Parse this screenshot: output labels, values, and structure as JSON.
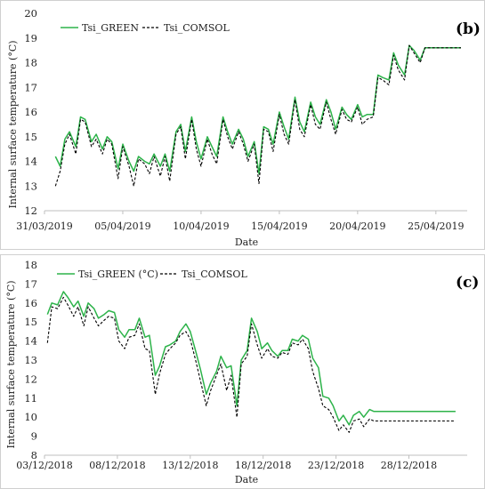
{
  "colors": {
    "green": "#2db34a",
    "comsol": "#000000",
    "axis": "#bfbfbf"
  },
  "chart_data": [
    {
      "type": "line",
      "panel_label": "(b)",
      "xlabel": "Date",
      "ylabel": "Internal surface temperature (°C)",
      "ylim": [
        12,
        20
      ],
      "yticks": [
        "12",
        "13",
        "14",
        "15",
        "16",
        "17",
        "18",
        "19",
        "20"
      ],
      "xlim": [
        0,
        27
      ],
      "xtick_positions": [
        0,
        5,
        10,
        15,
        20,
        25
      ],
      "xtick_labels": [
        "31/03/2019",
        "05/04/2019",
        "10/04/2019",
        "15/04/2019",
        "20/04/2019",
        "25/04/2019"
      ],
      "legend": "top-left",
      "series": [
        {
          "name": "Tsi_GREEN",
          "style": "solid",
          "x": [
            0.7,
            1.0,
            1.3,
            1.6,
            2.0,
            2.3,
            2.6,
            3.0,
            3.3,
            3.7,
            4.0,
            4.3,
            4.7,
            5.0,
            5.4,
            5.7,
            6.0,
            6.4,
            6.7,
            7.0,
            7.4,
            7.7,
            8.0,
            8.4,
            8.7,
            9.0,
            9.4,
            9.7,
            10.0,
            10.4,
            10.7,
            11.0,
            11.4,
            11.7,
            12.0,
            12.4,
            12.7,
            13.0,
            13.4,
            13.7,
            14.0,
            14.3,
            14.6,
            15.0,
            15.3,
            15.6,
            16.0,
            16.3,
            16.6,
            17.0,
            17.3,
            17.6,
            18.0,
            18.3,
            18.6,
            19.0,
            19.3,
            19.6,
            20.0,
            20.3,
            20.6,
            21.0,
            21.3,
            21.6,
            22.0,
            22.3,
            22.6,
            23.0,
            23.3,
            23.6,
            24.0,
            24.3,
            24.6,
            25.0,
            25.3,
            25.6,
            26.0,
            26.3,
            26.6
          ],
          "y": [
            14.2,
            13.8,
            14.9,
            15.2,
            14.6,
            15.8,
            15.7,
            14.8,
            15.1,
            14.5,
            15.0,
            14.8,
            13.7,
            14.7,
            14.0,
            13.6,
            14.2,
            14.0,
            13.9,
            14.3,
            13.8,
            14.3,
            13.6,
            15.2,
            15.5,
            14.4,
            15.8,
            14.8,
            14.1,
            15.0,
            14.6,
            14.2,
            15.8,
            15.2,
            14.7,
            15.3,
            14.9,
            14.2,
            14.8,
            13.5,
            15.4,
            15.3,
            14.7,
            16.0,
            15.4,
            14.9,
            16.6,
            15.6,
            15.2,
            16.4,
            15.8,
            15.5,
            16.5,
            16.0,
            15.3,
            16.2,
            15.9,
            15.7,
            16.3,
            15.8,
            15.9,
            15.9,
            17.5,
            17.4,
            17.3,
            18.4,
            17.9,
            17.5,
            18.7,
            18.5,
            18.1,
            18.6,
            18.6,
            18.6,
            18.6,
            18.6,
            18.6,
            18.6,
            18.6
          ]
        },
        {
          "name": "Tsi_COMSOL",
          "style": "dashed",
          "x": [
            0.7,
            1.0,
            1.3,
            1.6,
            2.0,
            2.3,
            2.6,
            3.0,
            3.3,
            3.7,
            4.0,
            4.3,
            4.7,
            5.0,
            5.4,
            5.7,
            6.0,
            6.4,
            6.7,
            7.0,
            7.4,
            7.7,
            8.0,
            8.4,
            8.7,
            9.0,
            9.4,
            9.7,
            10.0,
            10.4,
            10.7,
            11.0,
            11.4,
            11.7,
            12.0,
            12.4,
            12.7,
            13.0,
            13.4,
            13.7,
            14.0,
            14.3,
            14.6,
            15.0,
            15.3,
            15.6,
            16.0,
            16.3,
            16.6,
            17.0,
            17.3,
            17.6,
            18.0,
            18.3,
            18.6,
            19.0,
            19.3,
            19.6,
            20.0,
            20.3,
            20.6,
            21.0,
            21.3,
            21.6,
            22.0,
            22.3,
            22.6,
            23.0,
            23.3,
            23.6,
            24.0,
            24.3,
            24.6,
            25.0,
            25.3,
            25.6,
            26.0,
            26.3,
            26.6
          ],
          "y": [
            13.0,
            13.6,
            14.7,
            15.1,
            14.3,
            15.7,
            15.6,
            14.6,
            14.9,
            14.3,
            14.9,
            14.7,
            13.3,
            14.6,
            13.8,
            13.0,
            14.1,
            13.9,
            13.5,
            14.2,
            13.4,
            14.2,
            13.2,
            15.1,
            15.4,
            14.1,
            15.7,
            14.5,
            13.8,
            14.9,
            14.3,
            13.9,
            15.7,
            15.0,
            14.5,
            15.2,
            14.7,
            14.0,
            14.7,
            13.1,
            15.3,
            15.2,
            14.4,
            15.9,
            15.1,
            14.7,
            16.5,
            15.3,
            15.0,
            16.3,
            15.5,
            15.3,
            16.4,
            15.7,
            15.1,
            16.1,
            15.7,
            15.6,
            16.2,
            15.5,
            15.7,
            15.8,
            17.4,
            17.3,
            17.1,
            18.3,
            17.7,
            17.3,
            18.7,
            18.4,
            18.0,
            18.6,
            18.6,
            18.6,
            18.6,
            18.6,
            18.6,
            18.6,
            18.6
          ]
        }
      ]
    },
    {
      "type": "line",
      "panel_label": "(c)",
      "xlabel": "Date",
      "ylabel": "Internal surface temperature (°C)",
      "ylim": [
        8,
        18
      ],
      "yticks": [
        "8",
        "9",
        "10",
        "11",
        "12",
        "13",
        "14",
        "15",
        "16",
        "17",
        "18"
      ],
      "xlim": [
        0,
        29
      ],
      "xtick_positions": [
        0,
        5,
        10,
        15,
        20,
        25
      ],
      "xtick_labels": [
        "03/12/2018",
        "08/12/2018",
        "13/12/2018",
        "18/12/2018",
        "23/12/2018",
        "28/12/2018"
      ],
      "legend": "top-left",
      "series": [
        {
          "name": "Tsi_GREEN (°C)",
          "style": "solid",
          "x": [
            0.2,
            0.5,
            0.9,
            1.3,
            1.6,
            2.0,
            2.3,
            2.7,
            3.0,
            3.4,
            3.7,
            4.1,
            4.4,
            4.8,
            5.1,
            5.5,
            5.8,
            6.2,
            6.5,
            6.9,
            7.2,
            7.6,
            7.9,
            8.3,
            8.6,
            9.0,
            9.3,
            9.7,
            10.0,
            10.4,
            10.7,
            11.1,
            11.4,
            11.8,
            12.1,
            12.5,
            12.8,
            13.2,
            13.5,
            13.9,
            14.2,
            14.6,
            14.9,
            15.3,
            15.6,
            16.0,
            16.3,
            16.7,
            17.0,
            17.4,
            17.7,
            18.1,
            18.4,
            18.8,
            19.1,
            19.5,
            19.8,
            20.2,
            20.5,
            20.9,
            21.2,
            21.6,
            21.9,
            22.3,
            22.6,
            23.0,
            23.3,
            23.7,
            24.0,
            24.4,
            24.7,
            25.1,
            25.4,
            25.8,
            26.1,
            26.5,
            26.8,
            27.2,
            27.5,
            27.9,
            28.2
          ],
          "y": [
            15.4,
            16.0,
            15.9,
            16.6,
            16.3,
            15.8,
            16.1,
            15.3,
            16.0,
            15.7,
            15.2,
            15.4,
            15.6,
            15.5,
            14.6,
            14.2,
            14.6,
            14.6,
            15.2,
            14.2,
            14.3,
            12.2,
            12.7,
            13.7,
            13.8,
            14.0,
            14.5,
            14.9,
            14.5,
            13.4,
            12.5,
            11.2,
            11.8,
            12.4,
            13.2,
            12.6,
            12.7,
            10.6,
            13.0,
            13.5,
            15.2,
            14.5,
            13.6,
            13.9,
            13.5,
            13.2,
            13.5,
            13.5,
            14.1,
            14.0,
            14.3,
            14.1,
            13.1,
            12.6,
            11.1,
            11.0,
            10.6,
            9.8,
            10.1,
            9.6,
            10.1,
            10.3,
            10.0,
            10.4,
            10.3,
            10.3,
            10.3,
            10.3,
            10.3,
            10.3,
            10.3,
            10.3,
            10.3,
            10.3,
            10.3,
            10.3,
            10.3,
            10.3,
            10.3,
            10.3,
            10.3
          ]
        },
        {
          "name": "Tsi_COMSOL",
          "style": "dashed",
          "x": [
            0.2,
            0.5,
            0.9,
            1.3,
            1.6,
            2.0,
            2.3,
            2.7,
            3.0,
            3.4,
            3.7,
            4.1,
            4.4,
            4.8,
            5.1,
            5.5,
            5.8,
            6.2,
            6.5,
            6.9,
            7.2,
            7.6,
            7.9,
            8.3,
            8.6,
            9.0,
            9.3,
            9.7,
            10.0,
            10.4,
            10.7,
            11.1,
            11.4,
            11.8,
            12.1,
            12.5,
            12.8,
            13.2,
            13.5,
            13.9,
            14.2,
            14.6,
            14.9,
            15.3,
            15.6,
            16.0,
            16.3,
            16.7,
            17.0,
            17.4,
            17.7,
            18.1,
            18.4,
            18.8,
            19.1,
            19.5,
            19.8,
            20.2,
            20.5,
            20.9,
            21.2,
            21.6,
            21.9,
            22.3,
            22.6,
            23.0,
            23.3,
            23.7,
            24.0,
            24.4,
            24.7,
            25.1,
            25.4,
            25.8,
            26.1,
            26.5,
            26.8,
            27.2,
            27.5,
            27.9,
            28.2
          ],
          "y": [
            13.9,
            15.8,
            15.7,
            16.3,
            15.9,
            15.3,
            15.8,
            14.8,
            15.8,
            15.2,
            14.8,
            15.1,
            15.3,
            15.2,
            14.0,
            13.6,
            14.2,
            14.3,
            14.9,
            13.6,
            13.5,
            11.2,
            12.3,
            13.3,
            13.6,
            13.9,
            14.3,
            14.5,
            14.1,
            12.9,
            11.9,
            10.6,
            11.4,
            12.2,
            12.8,
            11.4,
            12.2,
            10.0,
            12.8,
            13.2,
            14.9,
            13.8,
            13.1,
            13.6,
            13.2,
            13.1,
            13.4,
            13.3,
            13.9,
            13.8,
            14.1,
            13.6,
            12.4,
            11.5,
            10.6,
            10.4,
            10.0,
            9.3,
            9.6,
            9.2,
            9.8,
            9.9,
            9.5,
            9.9,
            9.8,
            9.8,
            9.8,
            9.8,
            9.8,
            9.8,
            9.8,
            9.8,
            9.8,
            9.8,
            9.8,
            9.8,
            9.8,
            9.8,
            9.8,
            9.8,
            9.8
          ]
        }
      ]
    }
  ]
}
